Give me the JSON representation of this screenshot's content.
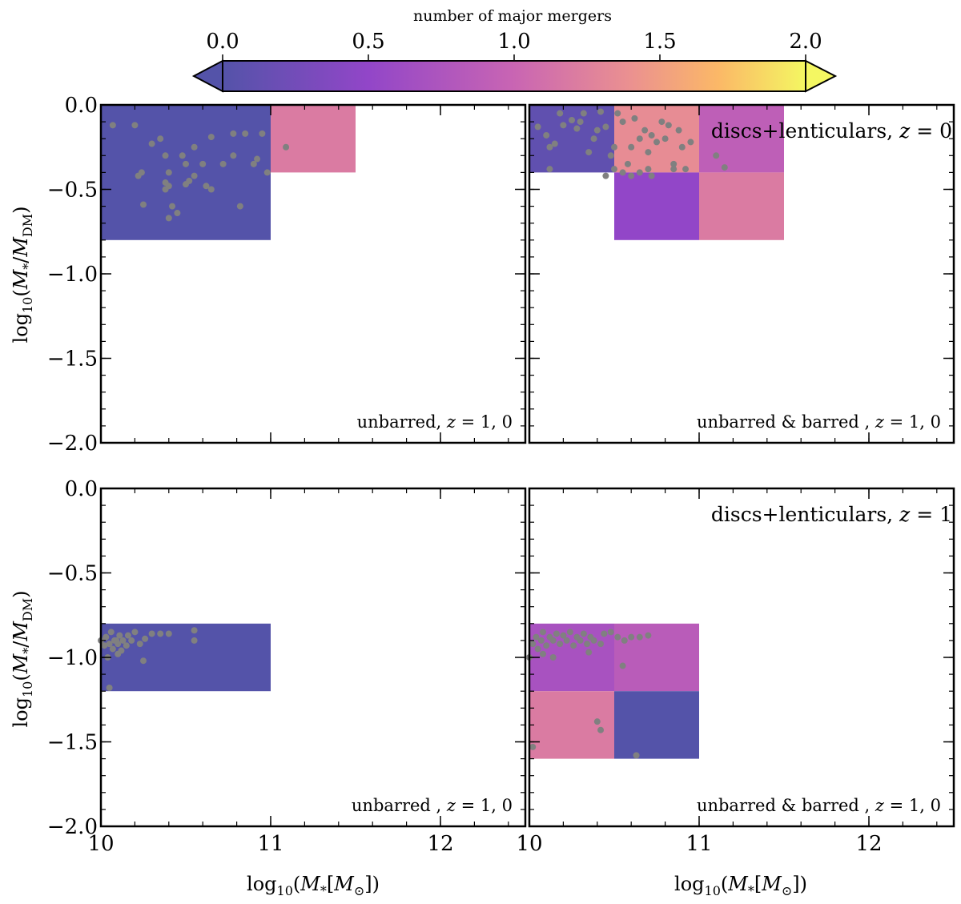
{
  "colorbar": {
    "label": "number of major mergers",
    "range": [
      0.0,
      2.0
    ],
    "ticks": [
      "0.0",
      "0.5",
      "1.0",
      "1.5",
      "2.0"
    ],
    "colormap": "plasma-like (slate blue → purple → pink → orange → yellow)",
    "extend": "both"
  },
  "chart_data": [
    {
      "type": "heatmap",
      "panel": "top-left",
      "annotation": "unbarred, z = 1, 0",
      "annotation_position": "bottom-right",
      "xlabel": "",
      "ylabel": "log10(M*/MDM)",
      "xlim": [
        10,
        12.5
      ],
      "ylim": [
        -2.0,
        0.0
      ],
      "xticks": [],
      "yticks": [
        "0.0",
        "−0.5",
        "−1.0",
        "−1.5",
        "−2.0"
      ],
      "cells": [
        {
          "x": [
            10.0,
            11.0
          ],
          "y": [
            -0.8,
            0.0
          ],
          "value": 0.0
        },
        {
          "x": [
            11.0,
            11.5
          ],
          "y": [
            -0.4,
            0.0
          ],
          "value": 1.2
        }
      ],
      "points": [
        [
          10.07,
          -0.12
        ],
        [
          10.2,
          -0.12
        ],
        [
          10.22,
          -0.42
        ],
        [
          10.24,
          -0.4
        ],
        [
          10.3,
          -0.23
        ],
        [
          10.35,
          -0.2
        ],
        [
          10.38,
          -0.3
        ],
        [
          10.38,
          -0.46
        ],
        [
          10.38,
          -0.5
        ],
        [
          10.4,
          -0.48
        ],
        [
          10.42,
          -0.6
        ],
        [
          10.4,
          -0.67
        ],
        [
          10.45,
          -0.64
        ],
        [
          10.4,
          -0.4
        ],
        [
          10.48,
          -0.3
        ],
        [
          10.5,
          -0.35
        ],
        [
          10.52,
          -0.45
        ],
        [
          10.55,
          -0.42
        ],
        [
          10.5,
          -0.47
        ],
        [
          10.55,
          -0.25
        ],
        [
          10.6,
          -0.35
        ],
        [
          10.62,
          -0.48
        ],
        [
          10.65,
          -0.5
        ],
        [
          10.65,
          -0.19
        ],
        [
          10.72,
          -0.35
        ],
        [
          10.78,
          -0.3
        ],
        [
          10.78,
          -0.17
        ],
        [
          10.82,
          -0.6
        ],
        [
          10.85,
          -0.17
        ],
        [
          10.9,
          -0.35
        ],
        [
          10.92,
          -0.32
        ],
        [
          10.95,
          -0.17
        ],
        [
          10.98,
          -0.4
        ],
        [
          10.25,
          -0.59
        ],
        [
          11.09,
          -0.25
        ]
      ]
    },
    {
      "type": "heatmap",
      "panel": "top-right",
      "annotation": "unbarred & barred , z = 1, 0",
      "annotation_position": "bottom-right",
      "title_annotation": "discs+lenticulars, z = 0",
      "xlabel": "",
      "ylabel": "",
      "xlim": [
        10,
        12.5
      ],
      "ylim": [
        -2.0,
        0.0
      ],
      "cells": [
        {
          "x": [
            10.0,
            10.5
          ],
          "y": [
            -0.4,
            0.0
          ],
          "value": 0.1
        },
        {
          "x": [
            10.5,
            11.0
          ],
          "y": [
            -0.4,
            0.0
          ],
          "value": 1.35
        },
        {
          "x": [
            11.0,
            11.5
          ],
          "y": [
            -0.4,
            0.0
          ],
          "value": 0.9
        },
        {
          "x": [
            10.5,
            11.0
          ],
          "y": [
            -0.8,
            -0.4
          ],
          "value": 0.5
        },
        {
          "x": [
            11.0,
            11.5
          ],
          "y": [
            -0.8,
            -0.4
          ],
          "value": 1.2
        }
      ],
      "points": [
        [
          10.05,
          -0.13
        ],
        [
          10.1,
          -0.18
        ],
        [
          10.12,
          -0.25
        ],
        [
          10.15,
          -0.23
        ],
        [
          10.18,
          -0.05
        ],
        [
          10.2,
          -0.12
        ],
        [
          10.25,
          -0.09
        ],
        [
          10.28,
          -0.14
        ],
        [
          10.3,
          -0.1
        ],
        [
          10.32,
          -0.05
        ],
        [
          10.35,
          -0.28
        ],
        [
          10.38,
          -0.2
        ],
        [
          10.4,
          -0.15
        ],
        [
          10.42,
          -0.04
        ],
        [
          10.45,
          -0.13
        ],
        [
          10.48,
          -0.3
        ],
        [
          10.5,
          -0.25
        ],
        [
          10.52,
          -0.05
        ],
        [
          10.55,
          -0.1
        ],
        [
          10.55,
          -0.4
        ],
        [
          10.58,
          -0.35
        ],
        [
          10.6,
          -0.25
        ],
        [
          10.62,
          -0.08
        ],
        [
          10.65,
          -0.2
        ],
        [
          10.68,
          -0.15
        ],
        [
          10.7,
          -0.28
        ],
        [
          10.72,
          -0.18
        ],
        [
          10.75,
          -0.22
        ],
        [
          10.78,
          -0.1
        ],
        [
          10.8,
          -0.2
        ],
        [
          10.82,
          -0.12
        ],
        [
          10.85,
          -0.35
        ],
        [
          10.88,
          -0.15
        ],
        [
          10.9,
          -0.25
        ],
        [
          10.92,
          -0.38
        ],
        [
          10.95,
          -0.22
        ],
        [
          10.6,
          -0.42
        ],
        [
          10.65,
          -0.4
        ],
        [
          10.7,
          -0.38
        ],
        [
          10.72,
          -0.42
        ],
        [
          11.1,
          -0.3
        ],
        [
          11.15,
          -0.37
        ],
        [
          10.5,
          -0.38
        ],
        [
          10.45,
          -0.42
        ],
        [
          10.12,
          -0.38
        ],
        [
          10.85,
          -0.38
        ]
      ]
    },
    {
      "type": "heatmap",
      "panel": "bottom-left",
      "annotation": "unbarred , z = 1, 0",
      "annotation_position": "bottom-right",
      "xlabel": "log10(M*[M⊙])",
      "ylabel": "log10(M*/MDM)",
      "xlim": [
        10,
        12.5
      ],
      "ylim": [
        -2.0,
        0.0
      ],
      "xticks": [
        "10",
        "11",
        "12"
      ],
      "yticks": [
        "0.0",
        "−0.5",
        "−1.0",
        "−1.5",
        "−2.0"
      ],
      "cells": [
        {
          "x": [
            10.0,
            11.0
          ],
          "y": [
            -1.2,
            -0.8
          ],
          "value": 0.0
        }
      ],
      "points": [
        [
          10.0,
          -0.9
        ],
        [
          10.02,
          -0.93
        ],
        [
          10.03,
          -0.88
        ],
        [
          10.05,
          -0.92
        ],
        [
          10.06,
          -0.85
        ],
        [
          10.07,
          -0.95
        ],
        [
          10.08,
          -0.9
        ],
        [
          10.1,
          -0.92
        ],
        [
          10.11,
          -0.87
        ],
        [
          10.12,
          -0.96
        ],
        [
          10.13,
          -0.9
        ],
        [
          10.15,
          -0.93
        ],
        [
          10.16,
          -0.87
        ],
        [
          10.18,
          -0.9
        ],
        [
          10.2,
          -0.85
        ],
        [
          10.23,
          -0.92
        ],
        [
          10.26,
          -0.89
        ],
        [
          10.3,
          -0.86
        ],
        [
          10.35,
          -0.86
        ],
        [
          10.4,
          -0.86
        ],
        [
          10.55,
          -0.84
        ],
        [
          10.55,
          -0.9
        ],
        [
          10.25,
          -1.02
        ],
        [
          10.05,
          -1.18
        ],
        [
          10.1,
          -0.98
        ],
        [
          10.04,
          -1.0
        ],
        [
          10.09,
          -0.9
        ]
      ]
    },
    {
      "type": "heatmap",
      "panel": "bottom-right",
      "annotation": "unbarred & barred , z = 1, 0",
      "annotation_position": "bottom-right",
      "title_annotation": "discs+lenticulars, z = 1",
      "xlabel": "log10(M*[M⊙])",
      "ylabel": "",
      "xlim": [
        10,
        12.5
      ],
      "ylim": [
        -2.0,
        0.0
      ],
      "xticks": [
        "10",
        "11",
        "12"
      ],
      "cells": [
        {
          "x": [
            10.0,
            10.5
          ],
          "y": [
            -1.2,
            -0.8
          ],
          "value": 0.7
        },
        {
          "x": [
            10.5,
            11.0
          ],
          "y": [
            -1.2,
            -0.8
          ],
          "value": 0.85
        },
        {
          "x": [
            10.0,
            10.5
          ],
          "y": [
            -1.6,
            -1.2
          ],
          "value": 1.2
        },
        {
          "x": [
            10.5,
            11.0
          ],
          "y": [
            -1.6,
            -1.2
          ],
          "value": 0.0
        }
      ],
      "points": [
        [
          10.02,
          -0.92
        ],
        [
          10.04,
          -0.88
        ],
        [
          10.05,
          -0.95
        ],
        [
          10.07,
          -0.9
        ],
        [
          10.08,
          -0.85
        ],
        [
          10.1,
          -0.93
        ],
        [
          10.12,
          -0.88
        ],
        [
          10.14,
          -0.9
        ],
        [
          10.16,
          -0.86
        ],
        [
          10.18,
          -0.92
        ],
        [
          10.2,
          -0.87
        ],
        [
          10.22,
          -0.9
        ],
        [
          10.24,
          -0.85
        ],
        [
          10.26,
          -0.93
        ],
        [
          10.28,
          -0.88
        ],
        [
          10.3,
          -0.9
        ],
        [
          10.32,
          -0.86
        ],
        [
          10.34,
          -0.92
        ],
        [
          10.36,
          -0.88
        ],
        [
          10.38,
          -0.9
        ],
        [
          10.42,
          -0.92
        ],
        [
          10.44,
          -0.86
        ],
        [
          10.48,
          -0.85
        ],
        [
          10.52,
          -0.88
        ],
        [
          10.56,
          -0.9
        ],
        [
          10.6,
          -0.88
        ],
        [
          10.65,
          -0.88
        ],
        [
          10.7,
          -0.87
        ],
        [
          10.08,
          -0.98
        ],
        [
          10.14,
          -1.0
        ],
        [
          10.55,
          -1.05
        ],
        [
          10.35,
          -0.97
        ],
        [
          10.0,
          -1.0
        ],
        [
          10.4,
          -1.38
        ],
        [
          10.42,
          -1.43
        ],
        [
          10.63,
          -1.58
        ],
        [
          10.02,
          -1.53
        ]
      ]
    }
  ]
}
